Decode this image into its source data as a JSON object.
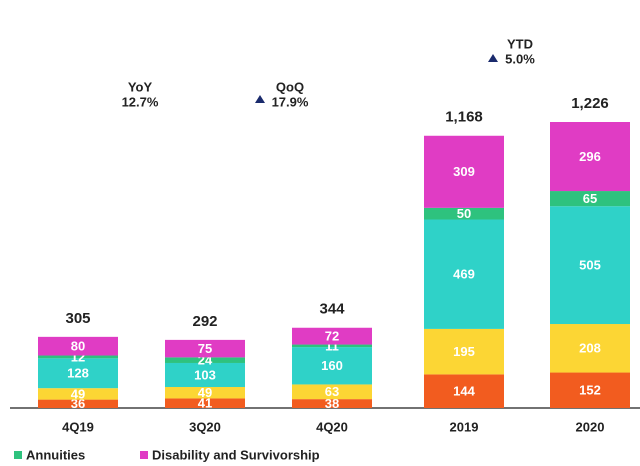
{
  "chart_data": {
    "type": "stacked_bar",
    "categories": [
      "4Q19",
      "3Q20",
      "4Q20",
      "2019",
      "2020"
    ],
    "series": [
      {
        "color": "#f25c1f",
        "values": [
          36,
          41,
          38,
          144,
          152
        ]
      },
      {
        "color": "#fcd634",
        "values": [
          49,
          49,
          63,
          195,
          208
        ]
      },
      {
        "color": "#2fd2c8",
        "values": [
          128,
          103,
          160,
          469,
          505
        ]
      },
      {
        "name": "Annuities",
        "color": "#2ec27e",
        "values": [
          12,
          24,
          11,
          50,
          65
        ]
      },
      {
        "name": "Disability and Survivorship",
        "color": "#e03cc4",
        "values": [
          80,
          75,
          72,
          309,
          296
        ]
      }
    ],
    "totals": {
      "values": [
        305,
        292,
        344,
        1168,
        1226
      ],
      "value_labels": [
        "305",
        "292",
        "344",
        "1,168",
        "1,226"
      ]
    },
    "annotations": [
      {
        "label": "YoY",
        "value": "12.7%"
      },
      {
        "label": "QoQ",
        "value": "17.9%"
      },
      {
        "label": "YTD",
        "value": "5.0%"
      }
    ]
  }
}
